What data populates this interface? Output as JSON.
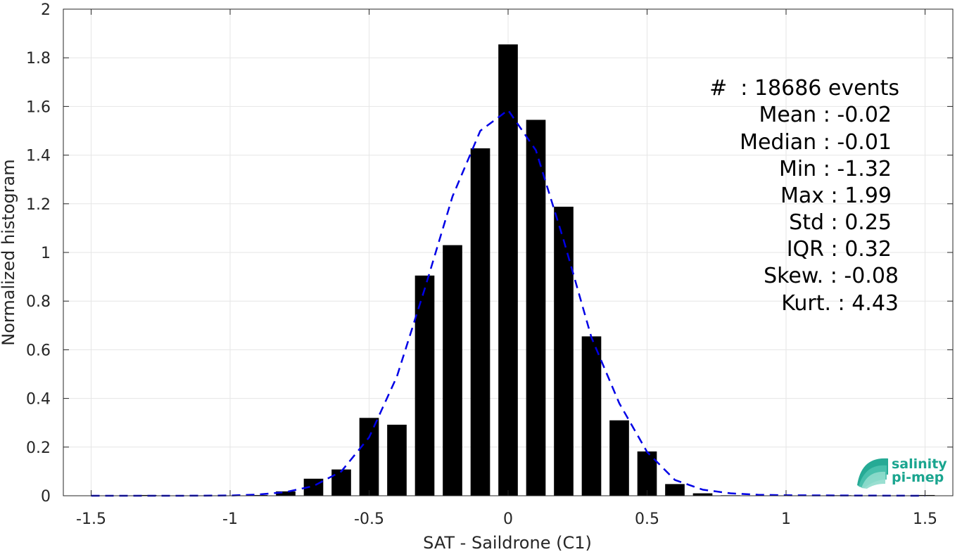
{
  "chart_data": {
    "type": "bar",
    "xlabel": "SAT - Saildrone (C1)",
    "ylabel": "Normalized histogram",
    "xlim": [
      -1.6,
      1.6
    ],
    "ylim": [
      0,
      2
    ],
    "grid": true,
    "xticks": [
      -1.5,
      -1,
      -0.5,
      0,
      0.5,
      1,
      1.5
    ],
    "xtick_labels": [
      "-1.5",
      "-1",
      "-0.5",
      "0",
      "0.5",
      "1",
      "1.5"
    ],
    "yticks": [
      0,
      0.2,
      0.4,
      0.6,
      0.8,
      1,
      1.2,
      1.4,
      1.6,
      1.8,
      2
    ],
    "ytick_labels": [
      "0",
      "0.2",
      "0.4",
      "0.6",
      "0.8",
      "1",
      "1.2",
      "1.4",
      "1.6",
      "1.8",
      "2"
    ],
    "bar_width": 0.07,
    "bar_color": "#000000",
    "bars": {
      "x": [
        -1.5,
        -1.4,
        -1.3,
        -1.2,
        -1.1,
        -1.0,
        -0.9,
        -0.8,
        -0.7,
        -0.6,
        -0.5,
        -0.4,
        -0.3,
        -0.2,
        -0.1,
        0.0,
        0.1,
        0.2,
        0.3,
        0.4,
        0.5,
        0.6,
        0.7,
        0.8,
        0.9,
        1.0,
        1.1,
        1.2,
        1.3,
        1.4,
        1.5
      ],
      "values": [
        0.0,
        0.0,
        0.003,
        0.0,
        0.0,
        0.0,
        0.003,
        0.018,
        0.07,
        0.108,
        0.32,
        0.292,
        0.905,
        1.03,
        1.428,
        1.855,
        1.545,
        1.188,
        0.655,
        0.31,
        0.182,
        0.048,
        0.01,
        0.002,
        0.0,
        0.0,
        0.0,
        0.002,
        0.0,
        0.0,
        0.003
      ]
    },
    "fit_curve": {
      "style": "dashed",
      "color": "#0000e6",
      "x": [
        -1.5,
        -1.2,
        -1.0,
        -0.9,
        -0.8,
        -0.7,
        -0.6,
        -0.5,
        -0.4,
        -0.3,
        -0.2,
        -0.1,
        0.0,
        0.1,
        0.2,
        0.3,
        0.4,
        0.5,
        0.6,
        0.7,
        0.8,
        0.9,
        1.0,
        1.2,
        1.5
      ],
      "y": [
        0.0,
        0.0,
        0.001,
        0.005,
        0.015,
        0.04,
        0.1,
        0.24,
        0.49,
        0.85,
        1.23,
        1.5,
        1.585,
        1.42,
        1.05,
        0.65,
        0.38,
        0.18,
        0.065,
        0.025,
        0.01,
        0.004,
        0.002,
        0.001,
        0.0
      ]
    },
    "stats": [
      "#  : 18686 events",
      "Mean : -0.02",
      "Median : -0.01",
      "Min : -1.32",
      "Max : 1.99",
      "Std : 0.25",
      "IQR : 0.32",
      "Skew. : -0.08",
      "Kurt. : 4.43"
    ]
  },
  "logo": {
    "line1": "salinity",
    "line2": "pi-mep",
    "color": "#1aa58f"
  }
}
